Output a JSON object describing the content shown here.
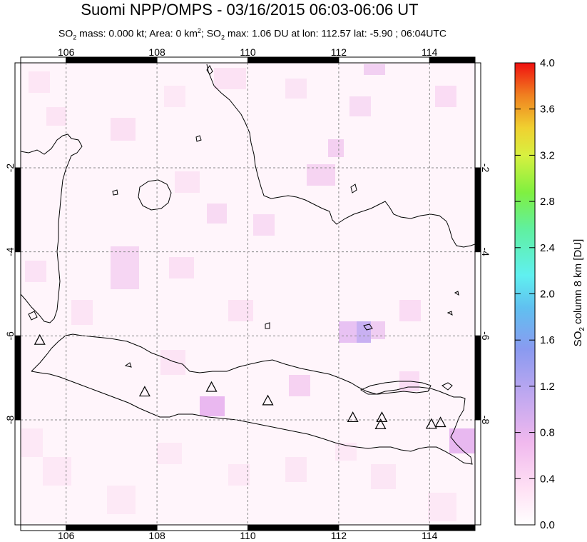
{
  "title": "Suomi NPP/OMPS - 03/16/2015 06:03-06:06 UT",
  "subtitle": {
    "p1": "SO",
    "p1_sub": "2",
    "p2": " mass: 0.000 kt; Area: 0 km",
    "p2_sup": "2",
    "p3": "; SO",
    "p3_sub": "2",
    "p4": " max: 1.06 DU at lon: 112.57 lat: -5.90 ; 06:04UTC"
  },
  "map": {
    "lon_ticks": [
      "106",
      "108",
      "110",
      "112",
      "114"
    ],
    "lat_ticks": [
      "-2",
      "-4",
      "-6",
      "-8"
    ],
    "lon_range": [
      105,
      115
    ],
    "lat_range": [
      -10.5,
      0.5
    ],
    "volcanoes": [
      {
        "lon": 105.42,
        "lat": -6.1
      },
      {
        "lon": 107.73,
        "lat": -7.33
      },
      {
        "lon": 109.2,
        "lat": -7.22
      },
      {
        "lon": 110.44,
        "lat": -7.54
      },
      {
        "lon": 112.31,
        "lat": -7.94
      },
      {
        "lon": 112.95,
        "lat": -7.94
      },
      {
        "lon": 112.92,
        "lat": -8.11
      },
      {
        "lon": 114.04,
        "lat": -8.1
      },
      {
        "lon": 114.24,
        "lat": -8.06
      }
    ]
  },
  "colorbar": {
    "label_prefix": "SO",
    "label_sub": "2",
    "label_suffix": " column 8 km [DU]",
    "ticks": [
      "4.0",
      "3.6",
      "3.2",
      "2.8",
      "2.4",
      "2.0",
      "1.6",
      "1.2",
      "0.8",
      "0.4",
      "0.0"
    ],
    "range": [
      0,
      4
    ],
    "colors": [
      "#ffffff",
      "#ffd6f2",
      "#e6b3f0",
      "#b3a0ef",
      "#7b8ff0",
      "#58c8f0",
      "#5ff0e8",
      "#5ff07a",
      "#b8f03a",
      "#f0f03c",
      "#f0b030",
      "#f05f20",
      "#f01010"
    ]
  }
}
